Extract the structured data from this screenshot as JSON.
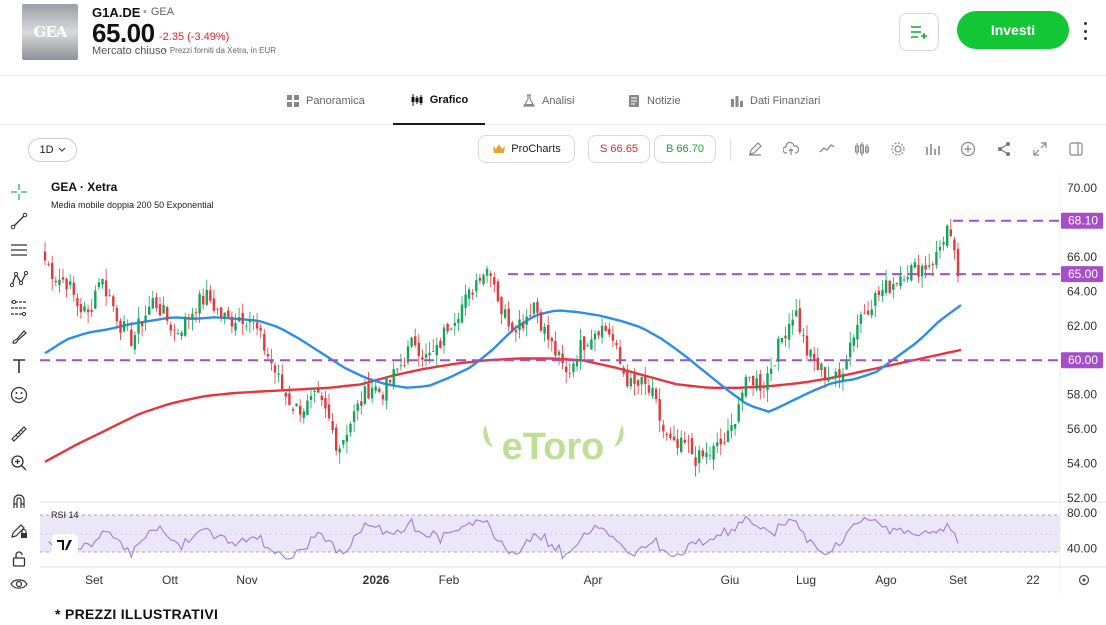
{
  "header": {
    "logo_text": "GEA",
    "ticker": "G1A.DE",
    "exchange": "GEA",
    "price": "65.00",
    "change": "-2.35 (-3.49%)",
    "market_status": "Mercato chiuso",
    "price_note": "Prezzi forniti da Xetra, in EUR",
    "invest_label": "Investi"
  },
  "tabs": [
    {
      "label": "Panoramica",
      "icon": "grid-icon",
      "active": false
    },
    {
      "label": "Grafico",
      "icon": "candles-icon",
      "active": true
    },
    {
      "label": "Analisi",
      "icon": "flask-icon",
      "active": false
    },
    {
      "label": "Notizie",
      "icon": "document-icon",
      "active": false
    },
    {
      "label": "Dati Finanziari",
      "icon": "bar-chart-icon",
      "active": false
    }
  ],
  "toolbar": {
    "interval": "1D",
    "procharts_label": "ProCharts",
    "sell_label": "S 66.65",
    "buy_label": "B 66.70",
    "tools": [
      "pencil-icon",
      "cloud-upload-icon",
      "line-chart-icon",
      "candles-icon",
      "gear-icon",
      "bars-icon",
      "add-circle-icon",
      "share-icon",
      "expand-icon",
      "sidebar-icon"
    ]
  },
  "drawing_tools": [
    "crosshair-icon",
    "trend-line-icon",
    "horizontal-lines-icon",
    "pattern-icon",
    "fib-icon",
    "brush-icon",
    "text-icon",
    "emoji-icon",
    "ruler-icon",
    "zoom-in-icon",
    "magnet-icon",
    "lock-pencil-icon",
    "lock-icon",
    "eye-icon"
  ],
  "chart_title": "GEA · Xetra",
  "indicator_label": "Media mobile doppia 200 50 Exponential",
  "rsi_label": "RSI 14",
  "watermark": "eToro",
  "footer_note": "* PREZZI ILLUSTRATIVI",
  "chart_data": {
    "type": "candlestick",
    "price_axis": {
      "ticks": [
        "70.00",
        "68.00",
        "66.00",
        "64.00",
        "62.00",
        "60.00",
        "58.00",
        "56.00",
        "54.00",
        "52.00"
      ],
      "range": [
        52,
        70
      ]
    },
    "rsi_axis": {
      "ticks": [
        "80.00",
        "40.00"
      ],
      "range": [
        20,
        90
      ],
      "bands": [
        30,
        70
      ]
    },
    "x_ticks": [
      "Set",
      "Ott",
      "Nov",
      "2026",
      "Feb",
      "Apr",
      "Giu",
      "Lug",
      "Ago",
      "Set",
      "22"
    ],
    "price_labels": [
      {
        "value": 68.1,
        "text": "68.10"
      },
      {
        "value": 65.0,
        "text": "65.00"
      },
      {
        "value": 60.0,
        "text": "60.00"
      }
    ],
    "close_series": [
      65.8,
      64.8,
      64.6,
      63.2,
      62.6,
      64.9,
      63.6,
      62.0,
      61.2,
      62.4,
      63.5,
      62.6,
      61.6,
      62.3,
      63.3,
      63.7,
      62.7,
      62.3,
      62.6,
      62.4,
      61.0,
      59.6,
      58.1,
      57.2,
      57.3,
      57.8,
      56.7,
      54.9,
      56.3,
      57.5,
      58.6,
      58.1,
      59.0,
      60.0,
      61.2,
      60.1,
      60.4,
      62.0,
      62.9,
      63.7,
      65.1,
      65.4,
      62.9,
      62.1,
      62.3,
      63.4,
      61.6,
      60.4,
      59.1,
      60.5,
      61.4,
      62.0,
      61.6,
      59.6,
      58.4,
      58.6,
      57.8,
      55.6,
      54.8,
      55.1,
      54.2,
      54.5,
      55.0,
      55.6,
      58.0,
      59.0,
      58.5,
      60.0,
      61.6,
      63.0,
      60.6,
      59.6,
      59.2,
      58.8,
      60.9,
      62.6,
      63.4,
      64.0,
      64.5,
      65.2,
      65.3,
      65.5,
      66.0,
      67.7,
      65.0
    ],
    "sma50_series": [
      60.4,
      61.2,
      61.6,
      61.8,
      62.1,
      62.3,
      62.5,
      62.4,
      62.5,
      62.4,
      62.3,
      61.9,
      61.2,
      60.4,
      59.6,
      59.0,
      58.6,
      58.4,
      58.5,
      59.0,
      59.6,
      60.6,
      61.8,
      62.6,
      62.9,
      62.8,
      62.6,
      62.3,
      61.9,
      61.2,
      60.3,
      59.3,
      58.3,
      57.4,
      57.0,
      57.6,
      58.2,
      58.7,
      58.9,
      59.3,
      60.2,
      61.1,
      62.3,
      63.2
    ],
    "sma200_series": [
      54.1,
      55.1,
      56.0,
      56.9,
      57.5,
      57.9,
      58.1,
      58.2,
      58.3,
      58.4,
      58.6,
      59.1,
      59.5,
      59.8,
      60.0,
      60.1,
      60.1,
      60.0,
      59.6,
      59.1,
      58.6,
      58.4,
      58.4,
      58.5,
      58.7,
      59.0,
      59.4,
      59.8,
      60.2,
      60.6
    ]
  }
}
